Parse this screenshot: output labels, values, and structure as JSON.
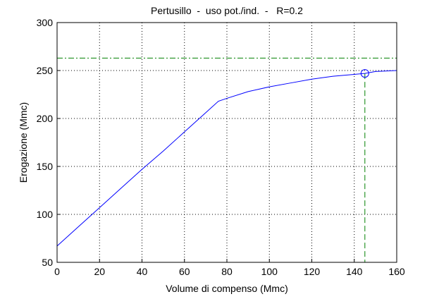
{
  "chart_data": {
    "type": "line",
    "title": "Pertusillo  -  uso pot./ind.  -   R=0.2",
    "xlabel": "Volume di compenso (Mmc)",
    "ylabel": "Erogazione (Mmc)",
    "x": [
      0,
      10,
      20,
      30,
      40,
      50,
      60,
      70,
      76,
      80,
      90,
      100,
      110,
      120,
      130,
      140,
      145,
      150,
      160
    ],
    "series": [
      {
        "color": "#0000ff",
        "values": [
          67,
          87,
          107,
          127,
          147,
          166,
          186,
          206,
          218,
          221,
          228,
          233,
          237,
          241,
          244,
          246,
          247,
          249,
          250
        ]
      }
    ],
    "reference_lines": {
      "color": "#008000",
      "y": 263,
      "x": 145
    },
    "marker": {
      "x": 145,
      "y": 247,
      "color": "#0000ff"
    },
    "xlim": [
      0,
      160
    ],
    "xticks": [
      0,
      20,
      40,
      60,
      80,
      100,
      120,
      140,
      160
    ],
    "ylim": [
      50,
      300
    ],
    "yticks": [
      50,
      100,
      150,
      200,
      250,
      300
    ],
    "grid": true
  }
}
